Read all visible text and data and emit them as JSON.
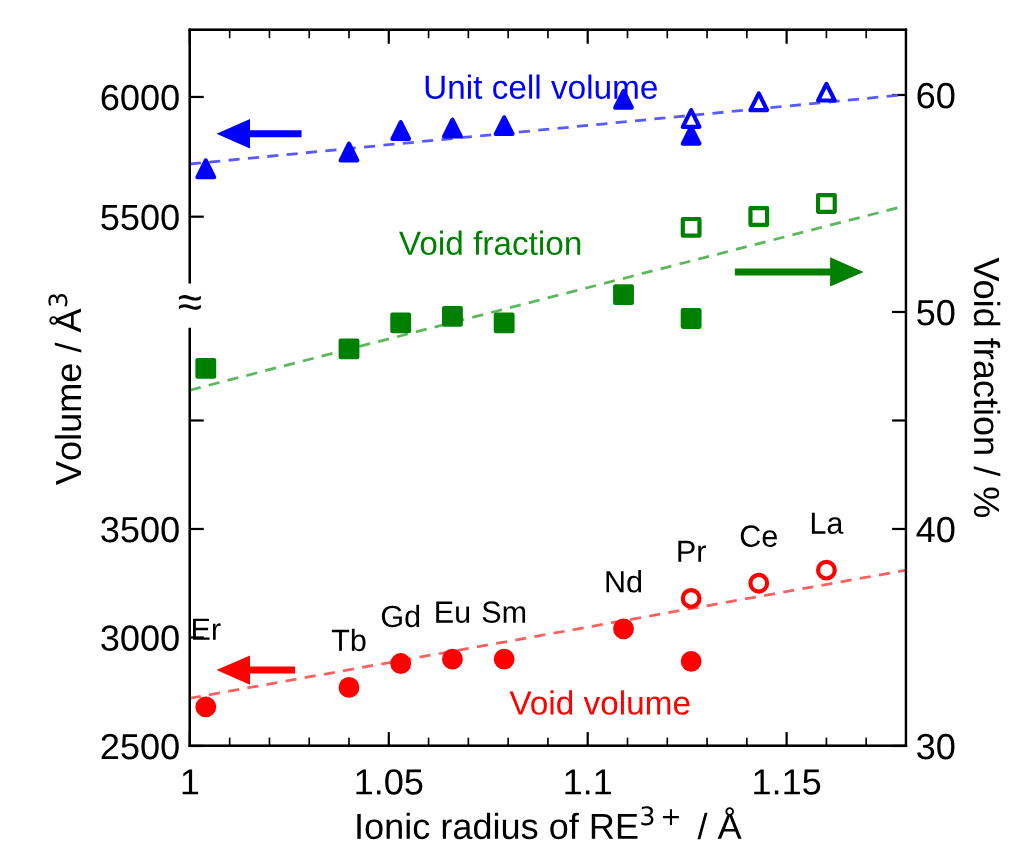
{
  "chart_data": {
    "type": "scatter",
    "xlabel": "Ionic radius of RE$^{3+}$ / Å",
    "ylabel": "Volume / Å$^{3}$",
    "y2label": "Void fraction / %",
    "xlim": [
      1,
      1.18
    ],
    "xticks": [
      1,
      1.05,
      1.1,
      1.15
    ],
    "ylim": [
      2500,
      5800
    ],
    "yticks": [
      2500,
      3000,
      3500,
      {
        "value": 4000,
        "label": null
      }
    ],
    "y2lim": [
      30,
      63
    ],
    "y2ticks": [
      30,
      40,
      {
        "value": 45,
        "label": null
      },
      50,
      60
    ],
    "y3lim": [
      3290,
      6280
    ],
    "y3ticks": [
      5500,
      6000
    ],
    "grid": false,
    "series": [
      {
        "name": "Unit cell volume",
        "axis": "y3",
        "marker": "triangle",
        "color": "#0000ff",
        "x": [
          1.004,
          1.04,
          1.053,
          1.066,
          1.079,
          1.109,
          1.126
        ],
        "values": [
          5700,
          5770,
          5860,
          5870,
          5880,
          5990,
          5840
        ]
      },
      {
        "axis": "y3",
        "marker": "triangle",
        "color": "#0000ff",
        "x": [
          1.126,
          1.143,
          1.16
        ],
        "values": [
          5910,
          5980,
          6020
        ]
      },
      {
        "type": "line",
        "axis": "y3",
        "marker": "none",
        "line_style": "dashed",
        "color": "#5a5aff",
        "x": [
          1,
          1.18
        ],
        "values": [
          5720,
          6010
        ]
      },
      {
        "name": "Void fraction",
        "axis": "y2",
        "marker": "square",
        "color": "#008000",
        "x": [
          1.004,
          1.04,
          1.053,
          1.066,
          1.079,
          1.109,
          1.126
        ],
        "values": [
          47.4,
          48.3,
          49.5,
          49.8,
          49.5,
          50.8,
          49.7
        ]
      },
      {
        "axis": "y2",
        "marker": "square",
        "color": "#008000",
        "x": [
          1.126,
          1.143,
          1.16
        ],
        "values": [
          53.9,
          54.4,
          55.0
        ]
      },
      {
        "type": "line",
        "axis": "y2",
        "marker": "none",
        "line_style": "dashed",
        "color": "#5cb85c",
        "x": [
          1,
          1.18
        ],
        "values": [
          46.4,
          54.9
        ]
      },
      {
        "name": "Void volume",
        "axis": "y",
        "marker": "circle",
        "color": "#ff0000",
        "x": [
          1.004,
          1.04,
          1.053,
          1.066,
          1.079,
          1.109,
          1.126
        ],
        "values": [
          2680,
          2770,
          2880,
          2900,
          2900,
          3040,
          2890
        ]
      },
      {
        "axis": "y",
        "marker": "circle",
        "color": "#ff0000",
        "x": [
          1.126,
          1.143,
          1.16
        ],
        "values": [
          3180,
          3250,
          3310
        ]
      },
      {
        "type": "line",
        "axis": "y",
        "marker": "none",
        "line_style": "dashed",
        "color": "#ff6060",
        "x": [
          1,
          1.18
        ],
        "values": [
          2720,
          3310
        ]
      }
    ],
    "annotations": [
      {
        "text": "Er",
        "x": 1.004,
        "y": 2680
      },
      {
        "text": "Tb",
        "x": 1.04,
        "y": 2770
      },
      {
        "text": "Gd",
        "x": 1.053,
        "y": 2880
      },
      {
        "text": "Eu",
        "x": 1.066,
        "y": 2900
      },
      {
        "text": "Sm",
        "x": 1.079,
        "y": 2900
      },
      {
        "text": "Nd",
        "x": 1.109,
        "y": 3040
      },
      {
        "text": "Pr",
        "x": 1.126,
        "y": 3180
      },
      {
        "text": "Ce",
        "x": 1.143,
        "y": 3250
      },
      {
        "text": "La",
        "x": 1.16,
        "y": 3310
      },
      "≈"
    ]
  }
}
